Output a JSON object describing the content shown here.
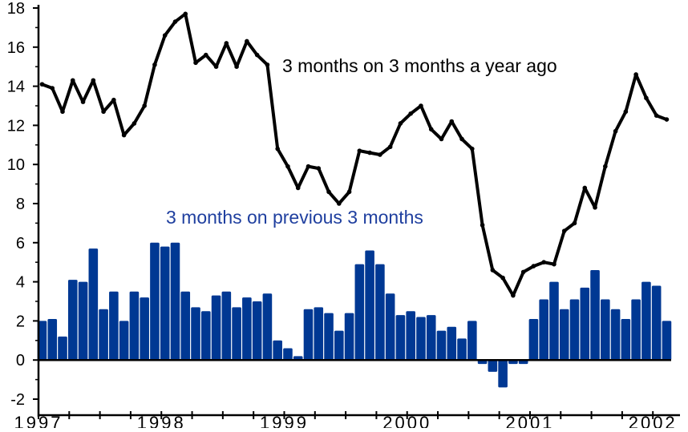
{
  "chart_data": {
    "type": "bar+line",
    "xlabel": "",
    "ylabel": "",
    "ylim": [
      -2,
      18
    ],
    "y_ticks": [
      "-2",
      "0",
      "2",
      "4",
      "6",
      "8",
      "10",
      "12",
      "14",
      "16",
      "18"
    ],
    "x_tick_labels": [
      "1997",
      "1998",
      "1999",
      "2000",
      "2001",
      "2002"
    ],
    "x_start": "1997-01",
    "x_frequency": "monthly",
    "grid": false,
    "colors": {
      "bars": "#003893",
      "line": "#000000",
      "bar_label": "#1f3f9f"
    },
    "series": [
      {
        "name": "3 months on 3 months a year ago",
        "type": "line",
        "values": [
          14.1,
          13.9,
          12.7,
          14.3,
          13.2,
          14.3,
          12.7,
          13.3,
          11.5,
          12.1,
          13.0,
          15.1,
          16.6,
          17.3,
          17.7,
          15.2,
          15.6,
          15.0,
          16.2,
          15.0,
          16.3,
          15.6,
          15.1,
          10.8,
          9.9,
          8.8,
          9.9,
          9.8,
          8.6,
          8.0,
          8.6,
          10.7,
          10.6,
          10.5,
          10.9,
          12.1,
          12.6,
          13.0,
          11.8,
          11.3,
          12.2,
          11.3,
          10.8,
          6.9,
          4.6,
          4.2,
          3.3,
          4.5,
          4.8,
          5.0,
          4.9,
          6.6,
          7.0,
          8.8,
          7.8,
          9.9,
          11.7,
          12.7,
          14.6,
          13.4,
          12.5,
          12.3
        ]
      },
      {
        "name": "3 months on previous 3 months",
        "type": "bar",
        "values": [
          2.0,
          2.1,
          1.2,
          4.1,
          4.0,
          5.7,
          2.6,
          3.5,
          2.0,
          3.5,
          3.2,
          6.0,
          5.8,
          6.0,
          3.5,
          2.7,
          2.5,
          3.3,
          3.5,
          2.7,
          3.2,
          3.0,
          3.4,
          1.0,
          0.6,
          0.2,
          2.6,
          2.7,
          2.4,
          1.5,
          2.4,
          4.9,
          5.6,
          4.9,
          3.4,
          2.3,
          2.5,
          2.2,
          2.3,
          1.5,
          1.7,
          1.1,
          2.0,
          -0.2,
          -0.6,
          -1.4,
          -0.2,
          -0.2,
          2.1,
          3.1,
          4.0,
          2.6,
          3.1,
          3.7,
          4.6,
          3.1,
          2.6,
          2.1,
          3.1,
          4.0,
          3.8,
          2.0
        ]
      }
    ]
  }
}
